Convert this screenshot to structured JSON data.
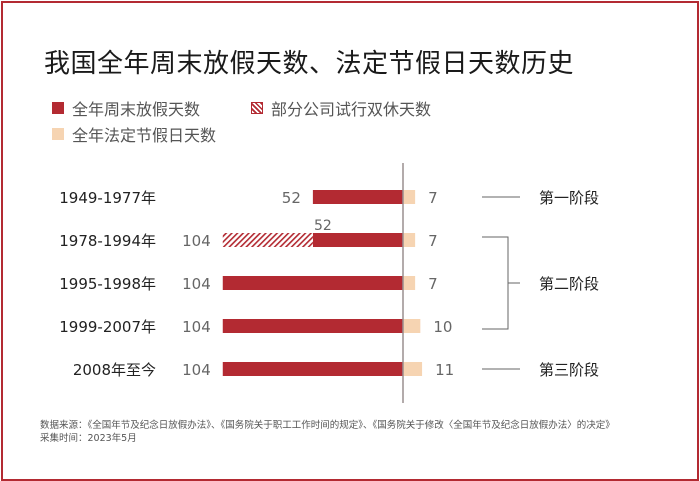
{
  "title": "我国全年周末放假天数、法定节假日天数历史",
  "legend": [
    {
      "label": "全年周末放假天数",
      "swatch": "solid"
    },
    {
      "label": "部分公司试行双休天数",
      "swatch": "hatch"
    },
    {
      "label": "全年法定节假日天数",
      "swatch": "light"
    }
  ],
  "colors": {
    "weekend": "#b32a32",
    "holiday": "#f6d4b2",
    "frame": "#b32a32",
    "text": "#555555"
  },
  "chart_data": {
    "type": "bar",
    "orientation": "horizontal-diverging",
    "categories": [
      "1949-1977年",
      "1978-1994年",
      "1995-1998年",
      "1999-2007年",
      "2008年至今"
    ],
    "series": [
      {
        "name": "全年周末放假天数",
        "values": [
          52,
          52,
          104,
          104,
          104
        ]
      },
      {
        "name": "部分公司试行双休天数",
        "values": [
          0,
          52,
          0,
          0,
          0
        ]
      },
      {
        "name": "全年法定节假日天数",
        "values": [
          7,
          7,
          7,
          10,
          11
        ]
      }
    ],
    "weekend_labels": [
      "52",
      "52",
      "104",
      "104",
      "104"
    ],
    "trial_total_labels": [
      "",
      "104",
      "",
      "",
      ""
    ],
    "holiday_labels": [
      "7",
      "7",
      "7",
      "10",
      "11"
    ],
    "stages": [
      {
        "label": "第一阶段",
        "rows": [
          0,
          0
        ]
      },
      {
        "label": "第二阶段",
        "rows": [
          1,
          3
        ]
      },
      {
        "label": "第三阶段",
        "rows": [
          4,
          4
        ]
      }
    ]
  },
  "footnote": {
    "source": "数据来源：《全国年节及纪念日放假办法》、《国务院关于职工工作时间的规定》、《国务院关于修改〈全国年节及纪念日放假办法〉的决定》",
    "date": "采集时间：2023年5月"
  }
}
